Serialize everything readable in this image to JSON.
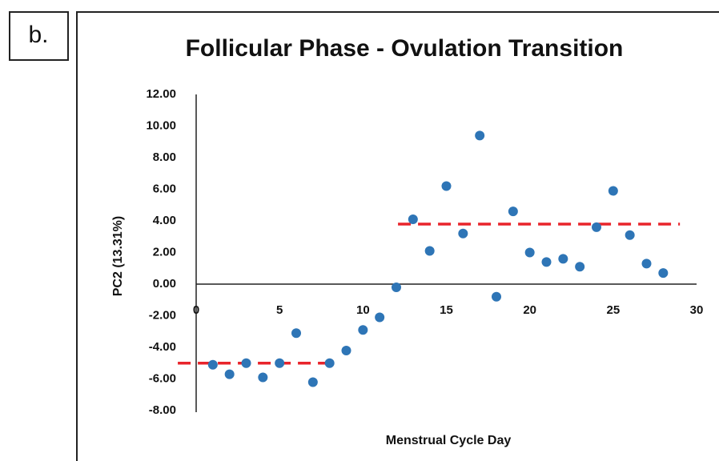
{
  "panel_label": "b.",
  "chart_data": {
    "type": "scatter",
    "title": "Follicular Phase - Ovulation Transition",
    "xlabel": "Menstrual Cycle Day",
    "ylabel": "PC2 (13.31%)",
    "x": [
      1,
      2,
      3,
      4,
      5,
      6,
      7,
      8,
      9,
      10,
      11,
      12,
      13,
      14,
      15,
      16,
      17,
      18,
      19,
      20,
      21,
      22,
      23,
      24,
      25,
      26,
      27,
      28
    ],
    "series": [
      {
        "color": "#2e75b6",
        "values": [
          -5.1,
          -5.7,
          -5.0,
          -5.9,
          -5.0,
          -3.1,
          -6.2,
          -5.0,
          -4.2,
          -2.9,
          -2.1,
          -0.2,
          4.1,
          2.1,
          6.2,
          3.2,
          9.4,
          -0.8,
          4.6,
          2.0,
          1.4,
          1.6,
          1.1,
          3.6,
          5.9,
          3.1,
          1.3,
          0.7
        ]
      }
    ],
    "mean_lines": [
      {
        "color": "#e8242b",
        "x": [
          -1.1,
          8.4
        ],
        "y": -5.0
      },
      {
        "color": "#e8242b",
        "x": [
          12.1,
          29.0
        ],
        "y": 3.8
      }
    ],
    "xlim": [
      0,
      30
    ],
    "xticks": [
      0,
      5,
      10,
      15,
      20,
      25,
      30
    ],
    "ylim": [
      -8,
      12
    ],
    "yticks": [
      {
        "value": -8,
        "label": "-8.00"
      },
      {
        "value": -6,
        "label": "-6.00"
      },
      {
        "value": -4,
        "label": "-4.00"
      },
      {
        "value": -2,
        "label": "-2.00"
      },
      {
        "value": 0,
        "label": "0.00"
      },
      {
        "value": 2,
        "label": "2.00"
      },
      {
        "value": 4,
        "label": "4.00"
      },
      {
        "value": 6,
        "label": "6.00"
      },
      {
        "value": 8,
        "label": "8.00"
      },
      {
        "value": 10,
        "label": "10.00"
      },
      {
        "value": 12,
        "label": "12.00"
      }
    ]
  }
}
